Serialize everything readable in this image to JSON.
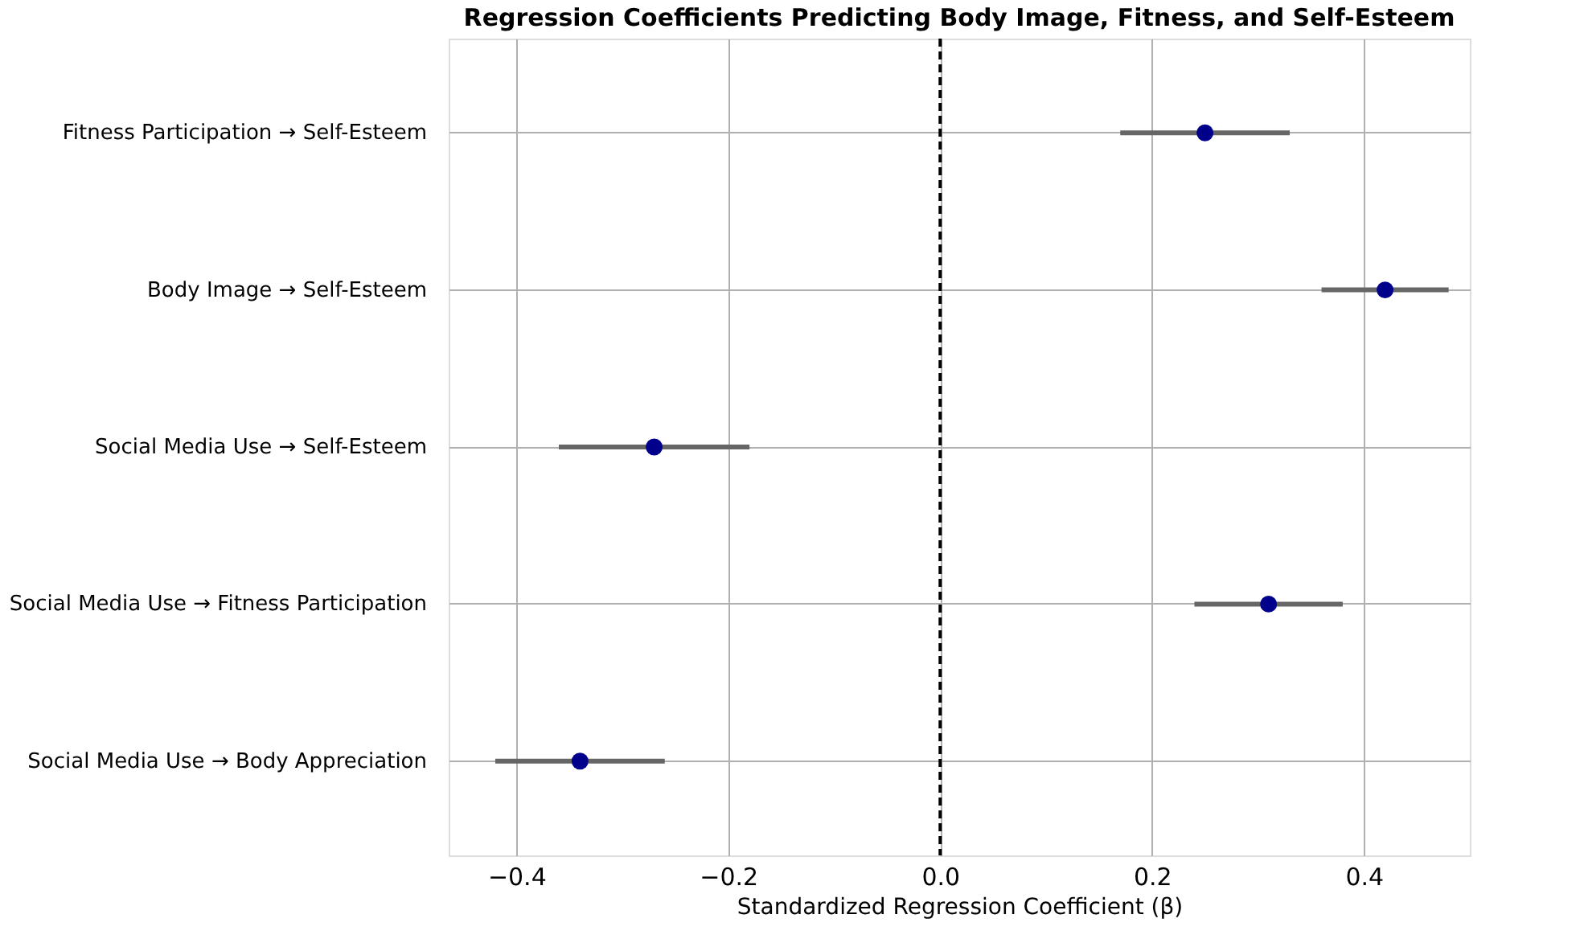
{
  "chart_data": {
    "type": "scatter",
    "orientation": "horizontal",
    "title": "Regression Coefficients Predicting Body Image, Fitness, and Self-Esteem",
    "xlabel": "Standardized Regression Coefficient (β)",
    "categories": [
      "Fitness Participation → Self-Esteem",
      "Body Image → Self-Esteem",
      "Social Media Use → Self-Esteem",
      "Social Media Use → Fitness Participation",
      "Social Media Use → Body Appreciation"
    ],
    "series": [
      {
        "color": "#00008b",
        "values": [
          0.25,
          0.42,
          -0.27,
          0.31,
          -0.34
        ],
        "errors": [
          [
            0.17,
            0.33
          ],
          [
            0.36,
            0.48
          ],
          [
            -0.36,
            -0.18
          ],
          [
            0.24,
            0.38
          ],
          [
            -0.42,
            -0.26
          ]
        ]
      }
    ],
    "xlim": [
      -0.464,
      0.5
    ],
    "xticks": [
      {
        "value": -0.4,
        "label": "−0.4"
      },
      {
        "value": -0.2,
        "label": "−0.2"
      },
      {
        "value": 0,
        "label": "0.0"
      },
      0.2,
      0.4
    ],
    "ref_lines": [
      {
        "axis": "x",
        "value": 0,
        "color": "#000000",
        "line_style": "dashed"
      }
    ],
    "grid": true,
    "marker": "circle",
    "legend": false
  }
}
